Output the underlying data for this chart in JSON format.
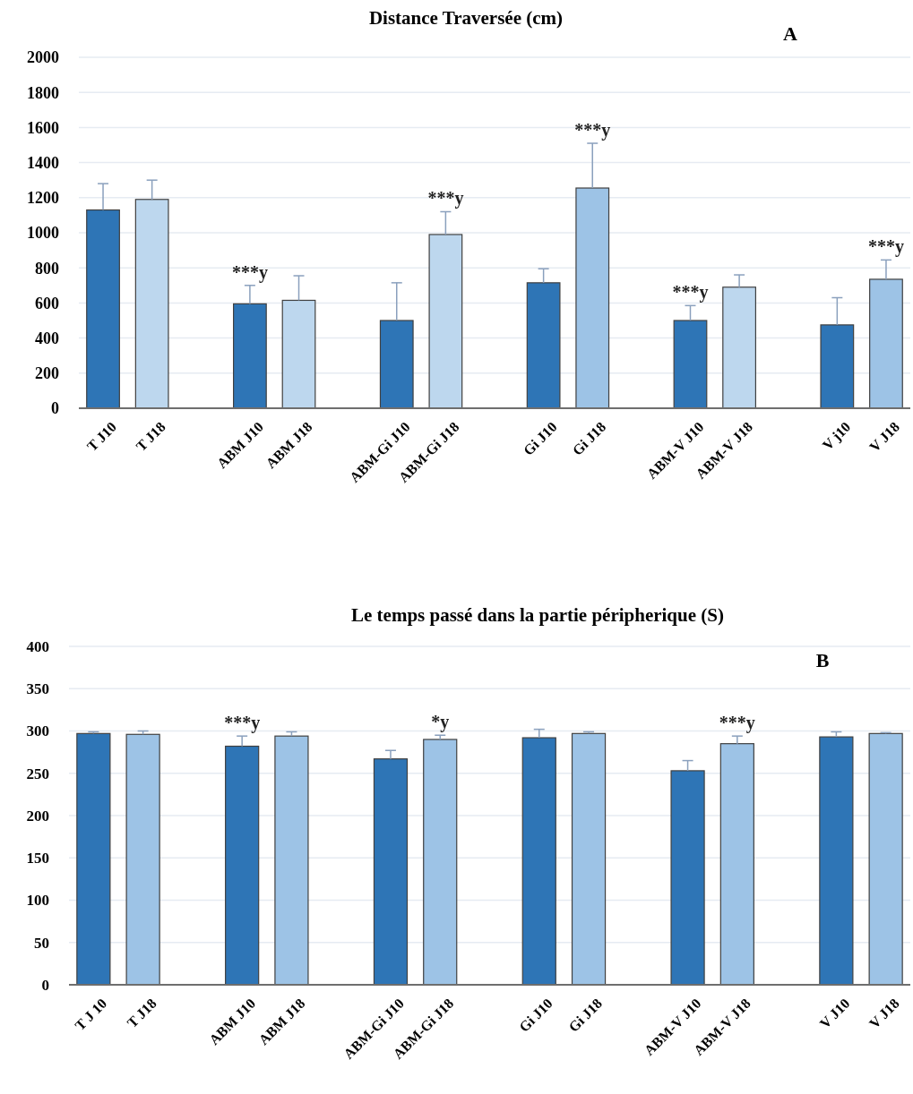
{
  "chart_data": [
    {
      "type": "bar",
      "title": "Distance Traversée (cm)",
      "categories": [
        "T J10",
        "T J18",
        null,
        "ABM J10",
        "ABM J18",
        null,
        "ABM-Gi J10",
        "ABM-Gi J18",
        null,
        "Gi J10",
        "Gi J18",
        null,
        "ABM-V J10",
        "ABM-V J18",
        null,
        "V j10",
        "V J18"
      ],
      "values": [
        1130,
        1190,
        null,
        595,
        615,
        null,
        500,
        990,
        null,
        715,
        1255,
        null,
        500,
        690,
        null,
        475,
        735
      ],
      "errors": [
        [
          1130,
          1280
        ],
        [
          1190,
          1300
        ],
        null,
        [
          595,
          700
        ],
        [
          615,
          755
        ],
        null,
        [
          500,
          715
        ],
        [
          990,
          1120
        ],
        null,
        [
          715,
          795
        ],
        [
          1255,
          1510
        ],
        null,
        [
          500,
          585
        ],
        [
          690,
          760
        ],
        null,
        [
          475,
          630
        ],
        [
          735,
          845
        ]
      ],
      "colors": [
        "#2e75b6",
        "#bdd7ee",
        null,
        "#2e75b6",
        "#bdd7ee",
        null,
        "#2e75b6",
        "#bdd7ee",
        null,
        "#2e75b6",
        "#9dc3e6",
        null,
        "#2e75b6",
        "#bdd7ee",
        null,
        "#2e75b6",
        "#9dc3e6"
      ],
      "ylim": [
        0,
        2000
      ],
      "yticks": [
        0,
        200,
        400,
        600,
        800,
        1000,
        1200,
        1400,
        1600,
        1800,
        2000
      ],
      "grid": "y",
      "annotations": [
        "A",
        {
          "text": "***y",
          "x": "ABM J10",
          "y": 595
        },
        {
          "text": "***y",
          "x": "ABM-Gi J18",
          "y": 990
        },
        {
          "text": "***y",
          "x": "Gi J18",
          "y": 1255
        },
        {
          "text": "***y",
          "x": "ABM-V J10",
          "y": 500
        },
        {
          "text": "***y",
          "x": "V J18",
          "y": 735
        }
      ]
    },
    {
      "type": "bar",
      "title": "Le temps passé dans la partie péripherique (S)",
      "categories": [
        "T J 10",
        "T J18",
        null,
        "ABM J10",
        "ABM J18",
        null,
        "ABM-Gi J10",
        "ABM-Gi J18",
        null,
        "Gi J10",
        "Gi J18",
        null,
        "ABM-V J10",
        "ABM-V J18",
        null,
        "V J10",
        "V J18"
      ],
      "values": [
        297,
        296,
        null,
        282,
        294,
        null,
        267,
        290,
        null,
        292,
        297,
        null,
        253,
        285,
        null,
        293,
        297
      ],
      "errors": [
        [
          297,
          299
        ],
        [
          296,
          300
        ],
        null,
        [
          282,
          294
        ],
        [
          294,
          299
        ],
        null,
        [
          267,
          277
        ],
        [
          290,
          295
        ],
        null,
        [
          292,
          302
        ],
        [
          297,
          299
        ],
        null,
        [
          253,
          265
        ],
        [
          285,
          294
        ],
        null,
        [
          293,
          299
        ],
        [
          297,
          298
        ]
      ],
      "colors": [
        "#2e75b6",
        "#9dc3e6",
        null,
        "#2e75b6",
        "#9dc3e6",
        null,
        "#2e75b6",
        "#9dc3e6",
        null,
        "#2e75b6",
        "#9dc3e6",
        null,
        "#2e75b6",
        "#9dc3e6",
        null,
        "#2e75b6",
        "#9dc3e6"
      ],
      "ylim": [
        0,
        400
      ],
      "yticks": [
        0,
        50,
        100,
        150,
        200,
        250,
        300,
        350,
        400
      ],
      "grid": "y",
      "annotations": [
        "B",
        {
          "text": "***y",
          "x": "ABM J10",
          "y": 282
        },
        {
          "text": "*y",
          "x": "ABM-Gi J18",
          "y": 290
        },
        {
          "text": "***y",
          "x": "ABM-V J18",
          "y": 285
        }
      ]
    }
  ]
}
